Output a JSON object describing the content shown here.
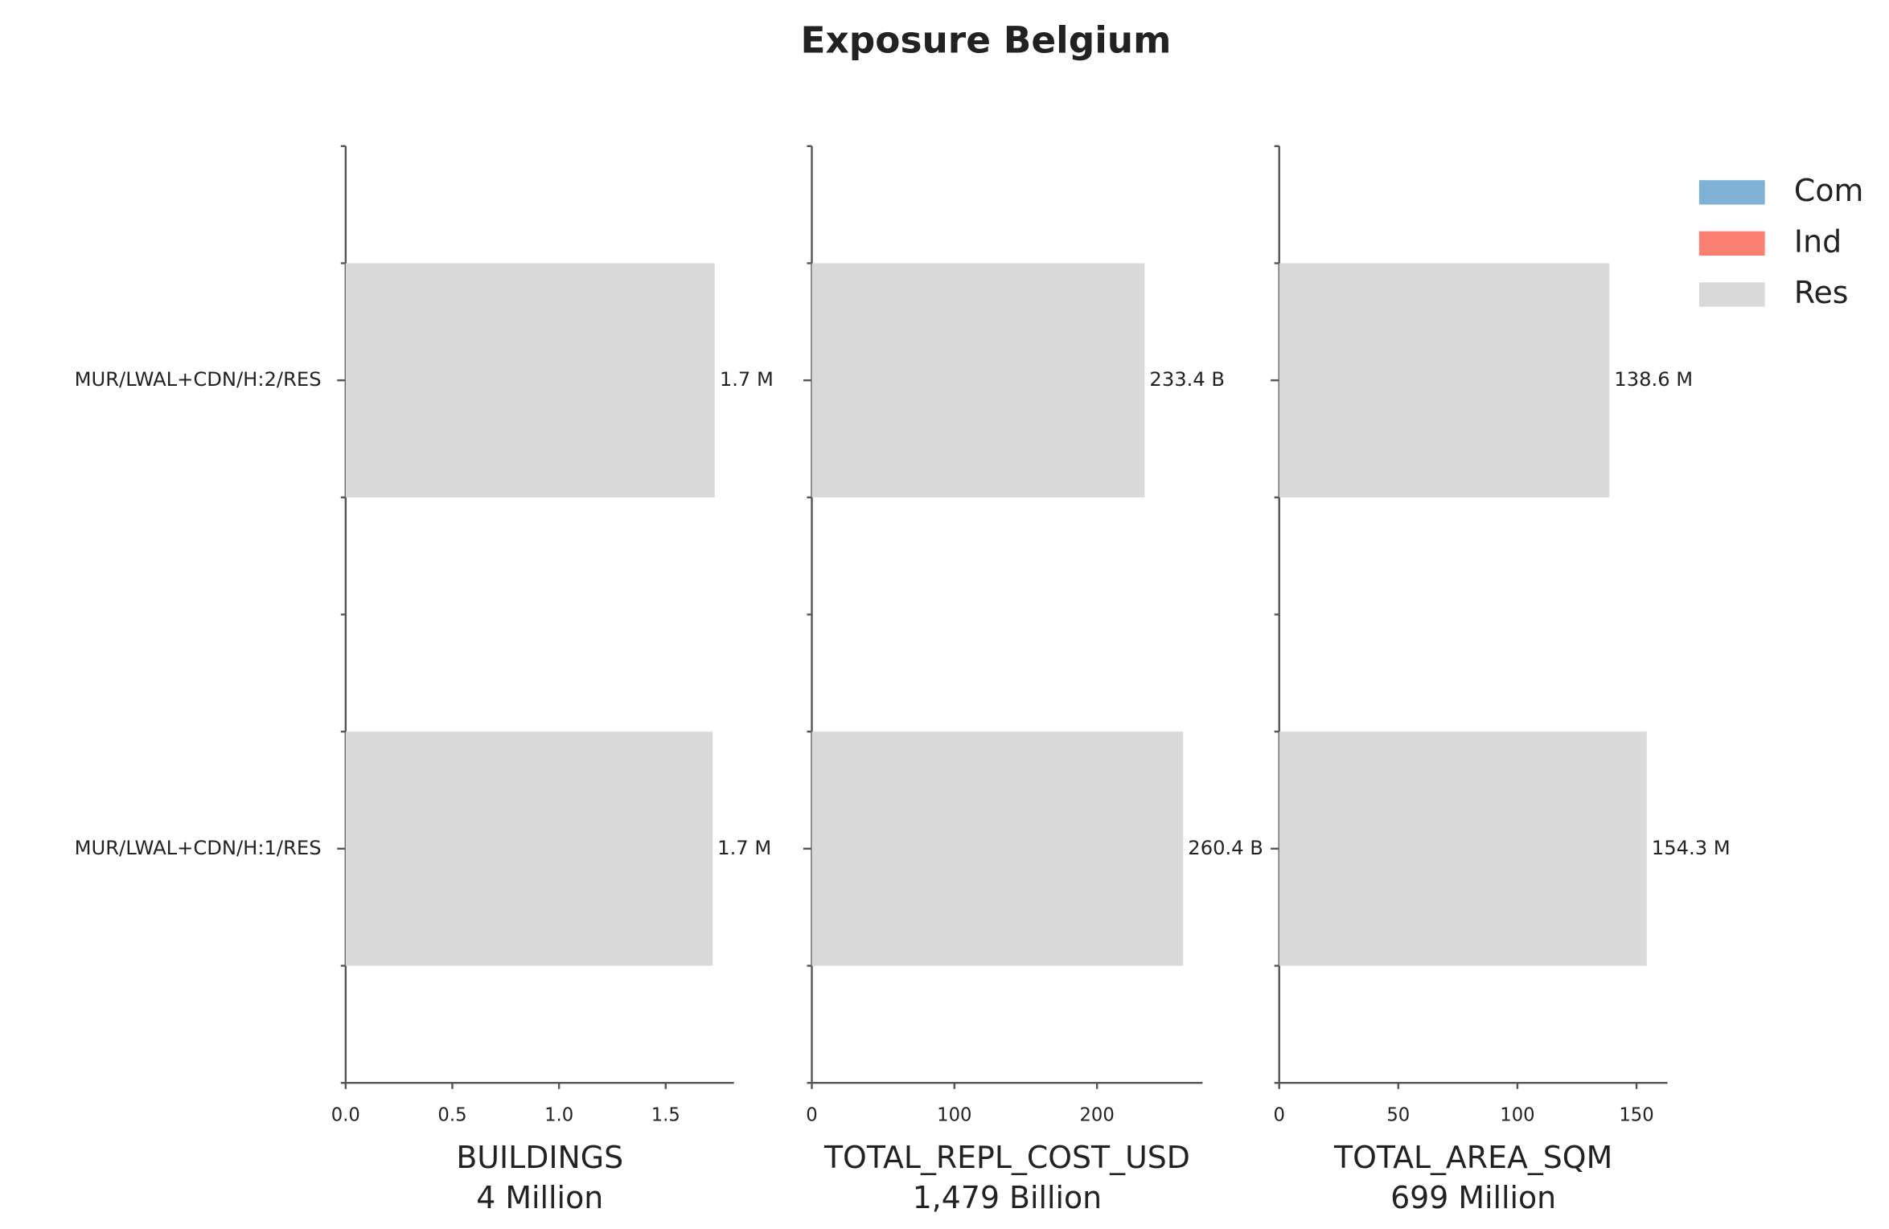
{
  "title": "Exposure Belgium",
  "chart_data": [
    {
      "type": "bar",
      "orientation": "horizontal",
      "stacked": true,
      "categories": [
        "MUR/LWAL+CDN/H:2/RES",
        "MUR/LWAL+CDN/H:1/RES"
      ],
      "series": [
        {
          "name": "Com",
          "color": "#7fb0d5",
          "values": [
            0,
            0
          ]
        },
        {
          "name": "Ind",
          "color": "#fb8072",
          "values": [
            0,
            0
          ]
        },
        {
          "name": "Res",
          "color": "#d9d9d9",
          "values": [
            1.73,
            1.72
          ],
          "value_labels": [
            "1.7 M",
            "1.7 M"
          ]
        }
      ],
      "xlim": [
        0,
        1.82
      ],
      "xticks": [
        {
          "value": 0,
          "label": "0.0"
        },
        0.5,
        {
          "value": 1,
          "label": "1.0"
        },
        1.5
      ],
      "xlabel": "BUILDINGS",
      "xlabel_total": "4 Million"
    },
    {
      "type": "bar",
      "orientation": "horizontal",
      "stacked": true,
      "series": [
        {
          "name": "Com",
          "color": "#7fb0d5",
          "values": [
            0,
            0
          ]
        },
        {
          "name": "Ind",
          "color": "#fb8072",
          "values": [
            0,
            0
          ]
        },
        {
          "name": "Res",
          "color": "#d9d9d9",
          "values": [
            233.4,
            260.4
          ],
          "value_labels": [
            "233.4 B",
            "260.4 B"
          ]
        }
      ],
      "xlim": [
        0,
        274
      ],
      "xticks": [
        0,
        100,
        200
      ],
      "xlabel": "TOTAL_REPL_COST_USD",
      "xlabel_total": "1,479 Billion"
    },
    {
      "type": "bar",
      "orientation": "horizontal",
      "stacked": true,
      "series": [
        {
          "name": "Com",
          "color": "#7fb0d5",
          "values": [
            0,
            0
          ]
        },
        {
          "name": "Ind",
          "color": "#fb8072",
          "values": [
            0,
            0
          ]
        },
        {
          "name": "Res",
          "color": "#d9d9d9",
          "values": [
            138.6,
            154.3
          ],
          "value_labels": [
            "138.6 M",
            "154.3 M"
          ]
        }
      ],
      "xlim": [
        0,
        163
      ],
      "xticks": [
        0,
        50,
        100,
        150
      ],
      "xlabel": "TOTAL_AREA_SQM",
      "xlabel_total": "699 Million",
      "legend": "upper right"
    }
  ]
}
